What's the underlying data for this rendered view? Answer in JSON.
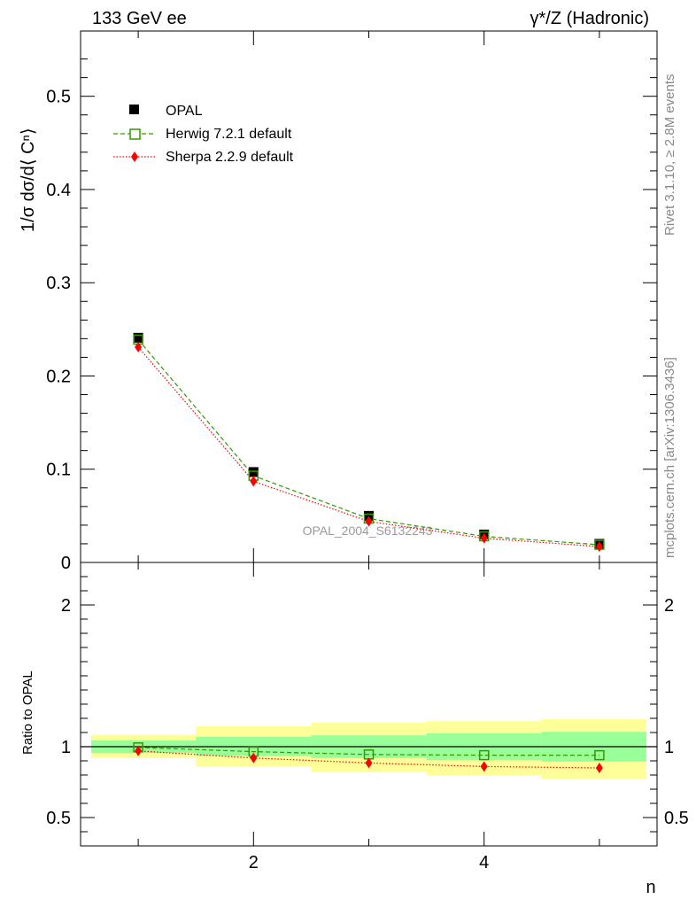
{
  "header": {
    "left": "133 GeV ee",
    "right": "γ*/Z (Hadronic)"
  },
  "side_labels": {
    "rivet": "Rivet 3.1.10, ≥ 2.8M events",
    "mcplots": "mcplots.cern.ch [arXiv:1306.3436]"
  },
  "watermark": "OPAL_2004_S6132243",
  "colors": {
    "data": "#000000",
    "herwig": "#339900",
    "sherpa": "#ff0000",
    "band_inner": "#99ff99",
    "band_outer": "#ffff99"
  },
  "chart_data": [
    {
      "type": "scatter",
      "ylabel": "1/σ dσ/d⟨ Cⁿ⟩",
      "ylim": [
        0,
        0.57
      ],
      "xlim": [
        0.5,
        5.5
      ],
      "y_ticks": [
        "0",
        "0.1",
        "0.2",
        "0.3",
        "0.4",
        "0.5"
      ],
      "legend_position": "top-left",
      "x": [
        1,
        2,
        3,
        4,
        5
      ],
      "series": [
        {
          "name": "OPAL",
          "style": "black filled squares",
          "values": [
            0.241,
            0.097,
            0.05,
            0.03,
            0.02
          ]
        },
        {
          "name": "Herwig 7.2.1 default",
          "style": "green dashed, open squares",
          "values": [
            0.239,
            0.093,
            0.047,
            0.028,
            0.019
          ]
        },
        {
          "name": "Sherpa 2.2.9 default",
          "style": "red dotted, diamonds",
          "values": [
            0.231,
            0.087,
            0.044,
            0.026,
            0.017
          ]
        }
      ]
    },
    {
      "type": "line",
      "ylabel": "Ratio to OPAL",
      "xlabel": "n",
      "ylim": [
        0.3,
        2.3
      ],
      "xlim": [
        0.5,
        5.5
      ],
      "y_ticks": [
        "0.5",
        "1",
        "2"
      ],
      "x_ticks": [
        "2",
        "4"
      ],
      "x": [
        1,
        2,
        3,
        4,
        5
      ],
      "series": [
        {
          "name": "Herwig 7.2.1 default",
          "values": [
            0.995,
            0.965,
            0.945,
            0.94,
            0.94
          ]
        },
        {
          "name": "Sherpa 2.2.9 default",
          "values": [
            0.97,
            0.92,
            0.885,
            0.86,
            0.85
          ]
        }
      ],
      "bands": {
        "inner": {
          "lo": [
            0.955,
            0.935,
            0.92,
            0.905,
            0.895
          ],
          "hi": [
            1.045,
            1.07,
            1.08,
            1.095,
            1.105
          ]
        },
        "outer": {
          "lo": [
            0.92,
            0.86,
            0.82,
            0.8,
            0.77
          ],
          "hi": [
            1.085,
            1.145,
            1.17,
            1.18,
            1.195
          ]
        }
      }
    }
  ]
}
